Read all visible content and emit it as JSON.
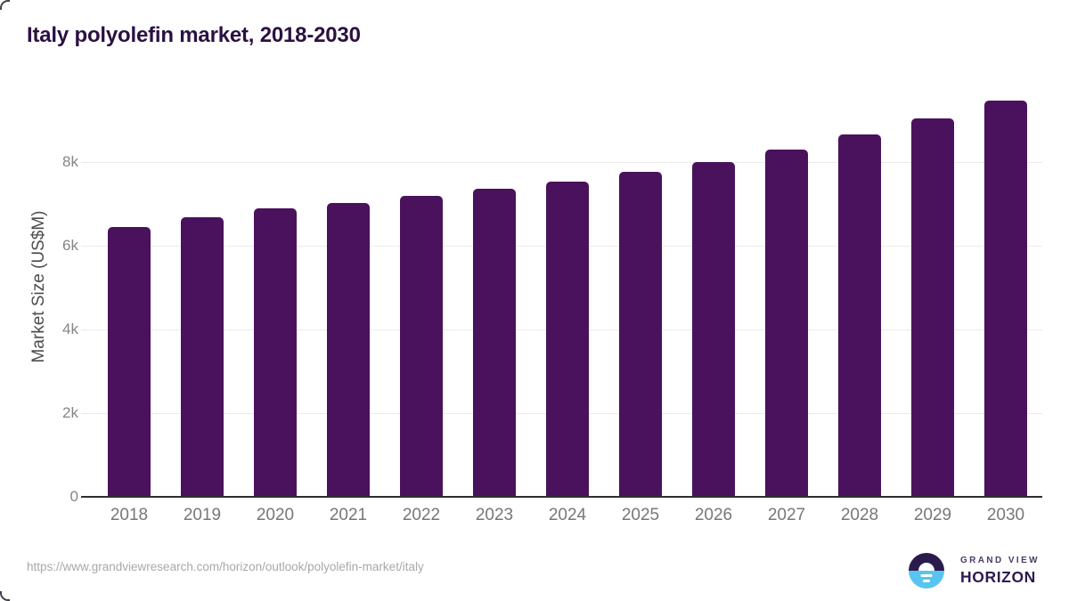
{
  "title": "Italy polyolefin market, 2018-2030",
  "source_url": "https://www.grandviewresearch.com/horizon/outlook/polyolefin-market/italy",
  "logo": {
    "line1": "GRAND VIEW",
    "line2": "HORIZON"
  },
  "colors": {
    "bar": "#4a115c",
    "title": "#2b1142",
    "gridline": "#ebebeb",
    "axis_line": "#2f2f2f",
    "tick_label": "#85868a",
    "x_label": "#76777b",
    "url_text": "#a8a8a8",
    "logo_purple": "#2b1b4d",
    "logo_blue": "#58c5f1"
  },
  "chart_data": {
    "type": "bar",
    "title": "Italy polyolefin market, 2018-2030",
    "categories": [
      "2018",
      "2019",
      "2020",
      "2021",
      "2022",
      "2023",
      "2024",
      "2025",
      "2026",
      "2027",
      "2028",
      "2029",
      "2030"
    ],
    "values": [
      6450,
      6690,
      6900,
      7020,
      7190,
      7360,
      7530,
      7770,
      8000,
      8300,
      8650,
      9050,
      9470
    ],
    "xlabel": "",
    "ylabel": "Market Size (US$M)",
    "ylim": [
      0,
      9745
    ],
    "yticks": [
      {
        "value": 0,
        "label": "0"
      },
      {
        "value": 2000,
        "label": "2k"
      },
      {
        "value": 4000,
        "label": "4k"
      },
      {
        "value": 6000,
        "label": "6k"
      },
      {
        "value": 8000,
        "label": "8k"
      }
    ],
    "grid": "horizontal",
    "legend": "none",
    "bar_color": "#4a115c"
  }
}
